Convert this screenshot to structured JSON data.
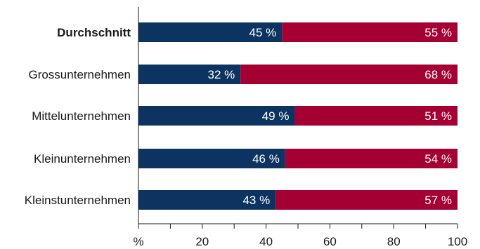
{
  "chart_data": {
    "type": "bar",
    "orientation": "horizontal",
    "stacked": true,
    "categories": [
      "Durchschnitt",
      "Grossunternehmen",
      "Mittelunternehmen",
      "Kleinunternehmen",
      "Kleinstunternehmen"
    ],
    "highlight_category": "Durchschnitt",
    "series": [
      {
        "values": [
          45,
          32,
          49,
          46,
          43
        ],
        "labels": [
          "45 %",
          "32 %",
          "49 %",
          "46 %",
          "43 %"
        ],
        "color": "#0d3461"
      },
      {
        "values": [
          55,
          68,
          51,
          54,
          57
        ],
        "labels": [
          "55 %",
          "68 %",
          "51 %",
          "54 %",
          "57 %"
        ],
        "color": "#a50034"
      }
    ],
    "xlim": [
      0,
      100
    ],
    "xticks": [
      0,
      10,
      20,
      30,
      40,
      50,
      60,
      70,
      80,
      90,
      100
    ],
    "xtick_labels": [
      {
        "value": 0,
        "label": "%"
      },
      {
        "value": 20,
        "label": "20"
      },
      {
        "value": 40,
        "label": "40"
      },
      {
        "value": 60,
        "label": "60"
      },
      {
        "value": 80,
        "label": "80"
      },
      {
        "value": 100,
        "label": "100"
      }
    ],
    "grid": false,
    "legend": "none",
    "title": "",
    "xlabel": "",
    "ylabel": ""
  }
}
